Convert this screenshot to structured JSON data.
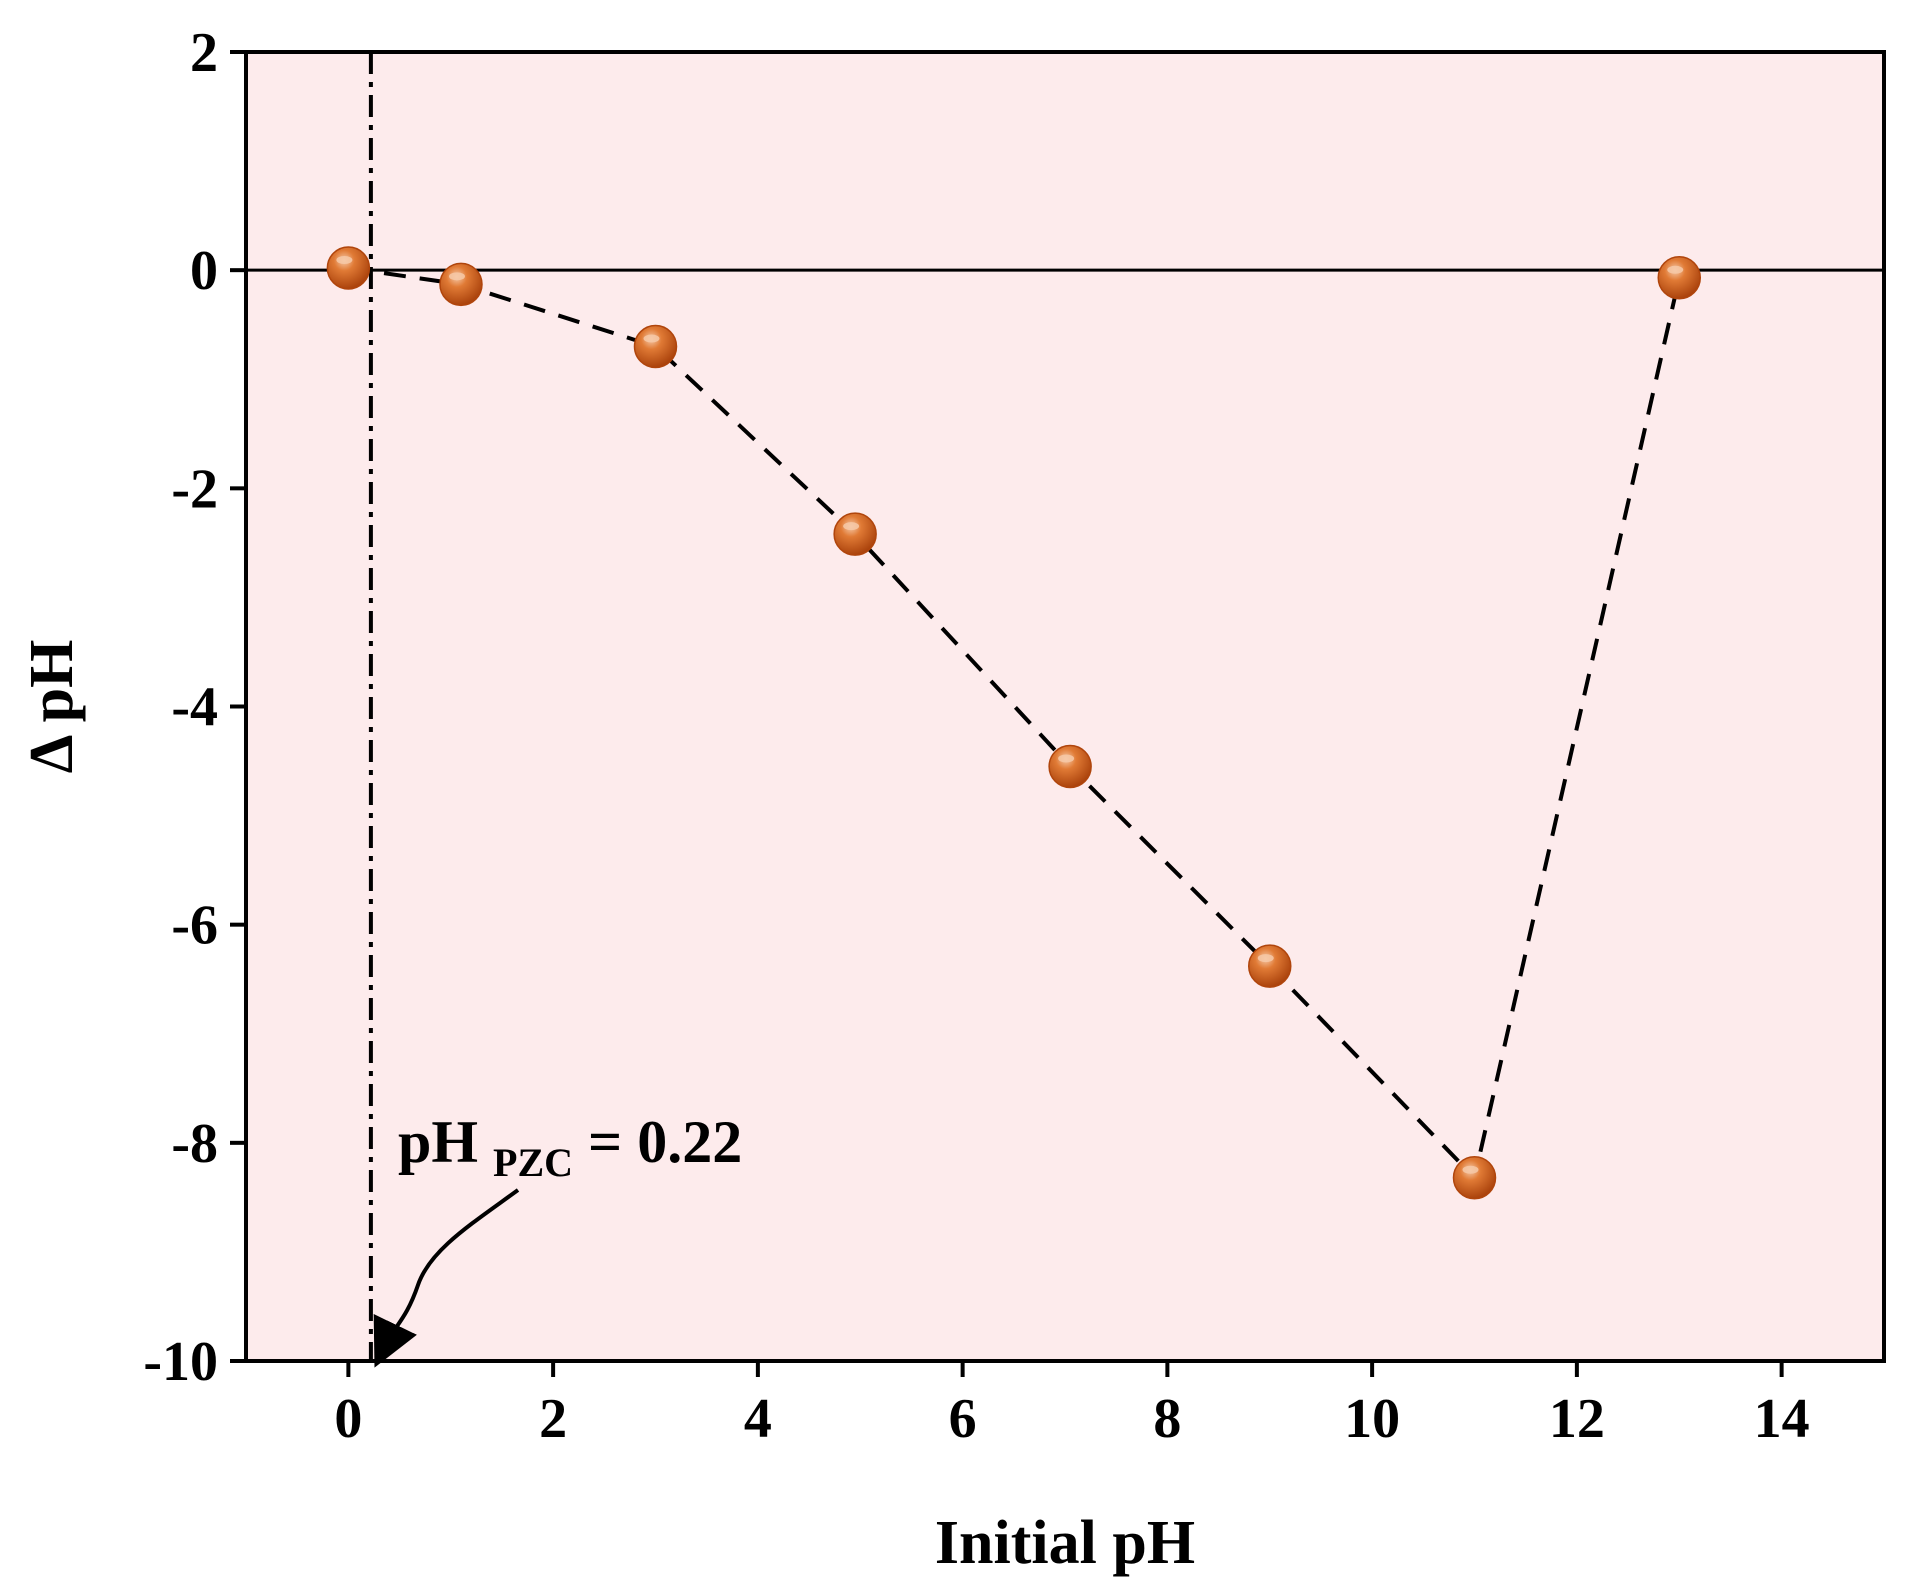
{
  "chart_data": {
    "type": "scatter",
    "title": "",
    "xlabel": "Initial pH",
    "ylabel": "Δ pH",
    "xlim": [
      -1,
      15
    ],
    "ylim": [
      -10,
      2
    ],
    "xticks": [
      0,
      2,
      4,
      6,
      8,
      10,
      12,
      14
    ],
    "yticks": [
      2,
      0,
      -2,
      -4,
      -6,
      -8,
      -10
    ],
    "grid": false,
    "legend": "none",
    "series": [
      {
        "x": [
          0,
          1.1,
          3.0,
          4.95,
          7.05,
          9.0,
          11.0,
          13.0
        ],
        "y": [
          0.02,
          -0.13,
          -0.7,
          -2.42,
          -4.55,
          -6.38,
          -8.32,
          -0.07
        ],
        "marker": "sphere",
        "line": "dashed"
      }
    ],
    "zero_line": 0,
    "pzc_line_x": 0.22,
    "annotation": {
      "text_main": "pH",
      "text_sub": "PZC",
      "text_tail": " = 0.22"
    },
    "colors": {
      "background": "#fdebec",
      "marker": "#c8500f",
      "marker_highlight": "#f6c9a8",
      "line": "#000000"
    }
  }
}
